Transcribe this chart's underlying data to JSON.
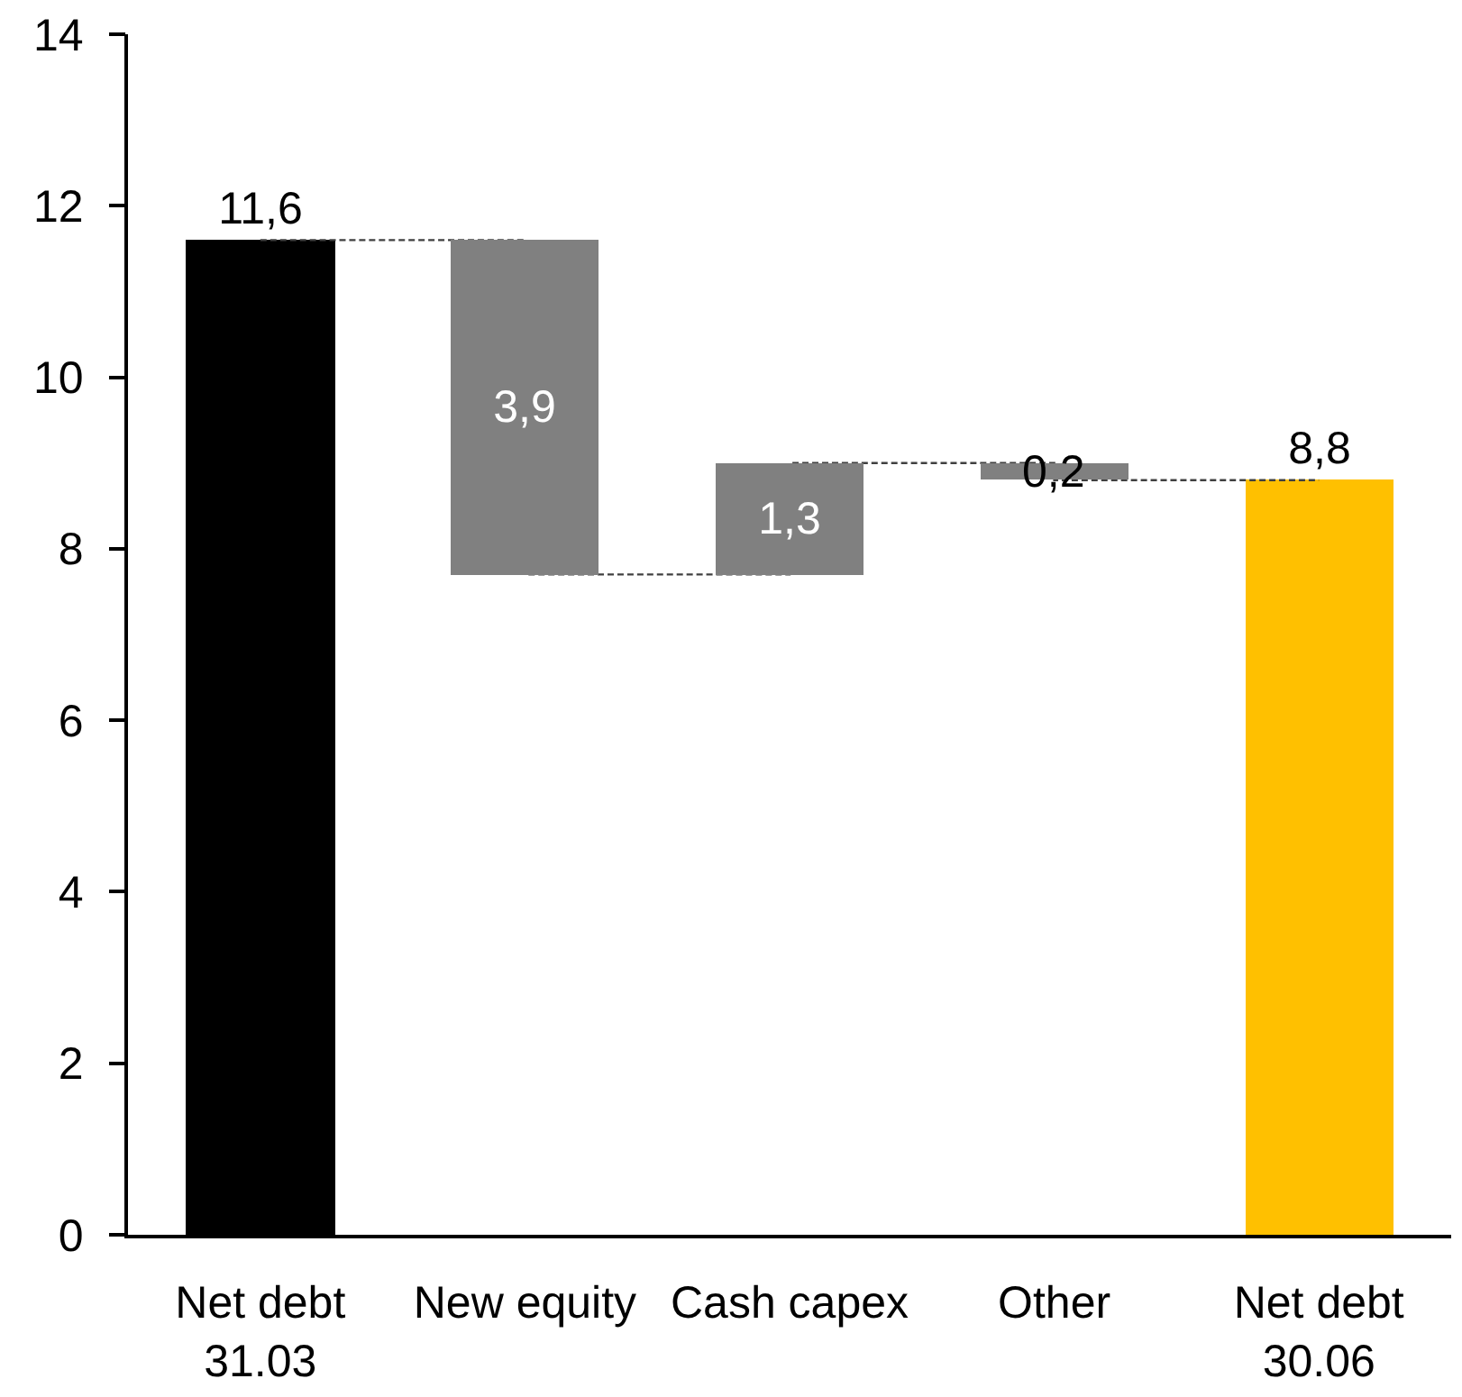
{
  "chart_data": {
    "type": "bar",
    "categories": [
      "Net debt\n31.03",
      "New equity",
      "Cash capex",
      "Other",
      "Net debt\n30.06"
    ],
    "series": [
      {
        "values": [
          11.6,
          -3.9,
          1.3,
          -0.2,
          8.8
        ],
        "base": [
          0,
          11.6,
          7.7,
          9.0,
          0
        ],
        "colors": [
          "#000000",
          "#808080",
          "#808080",
          "#808080",
          "#ffc000"
        ],
        "value_labels": [
          "11,6",
          "3,9",
          "1,3",
          "0,2",
          "8,8"
        ]
      },
      {
        "type": "step",
        "values": [
          11.6,
          7.7,
          9.0,
          8.8,
          8.8
        ],
        "color": "#404040",
        "line_style": "dashed"
      }
    ],
    "ylim": [
      0,
      14
    ],
    "yticks": [
      0,
      2,
      4,
      6,
      8,
      10,
      12,
      14
    ],
    "grid": false
  }
}
